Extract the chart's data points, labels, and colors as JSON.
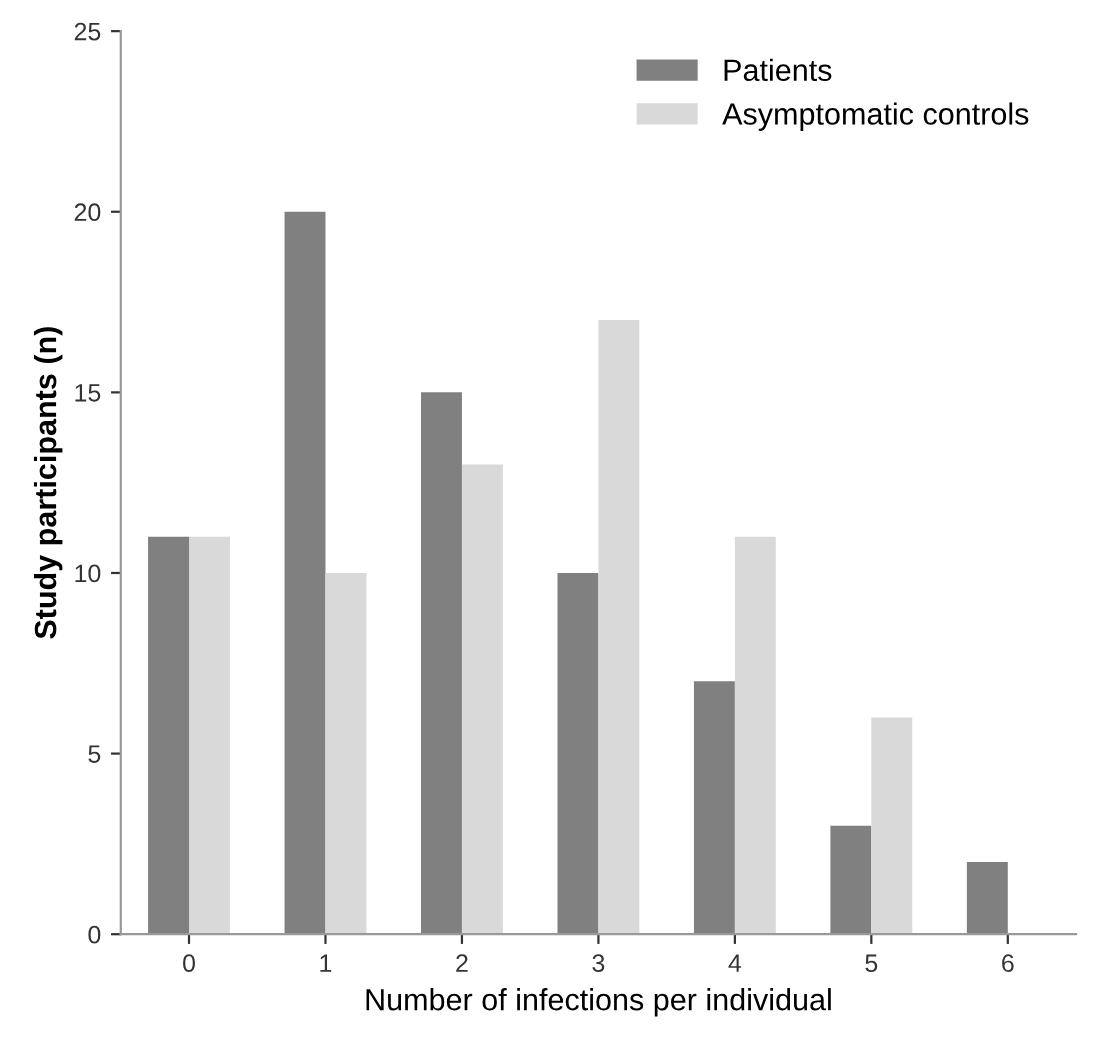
{
  "chart_data": {
    "type": "bar",
    "xlabel": "Number of infections per individual",
    "ylabel": "Study participants (n)",
    "categories": [
      "0",
      "1",
      "2",
      "3",
      "4",
      "5",
      "6"
    ],
    "series": [
      {
        "name": "Patients",
        "color": "#808080",
        "values": [
          11,
          20,
          15,
          10,
          7,
          3,
          2
        ]
      },
      {
        "name": "Asymptomatic controls",
        "color": "#d9d9d9",
        "values": [
          11,
          10,
          13,
          17,
          11,
          6,
          0
        ]
      }
    ],
    "ylim": [
      0,
      25
    ],
    "yticks": [
      0,
      5,
      10,
      15,
      20,
      25
    ],
    "grid": false,
    "legend": "top right"
  }
}
